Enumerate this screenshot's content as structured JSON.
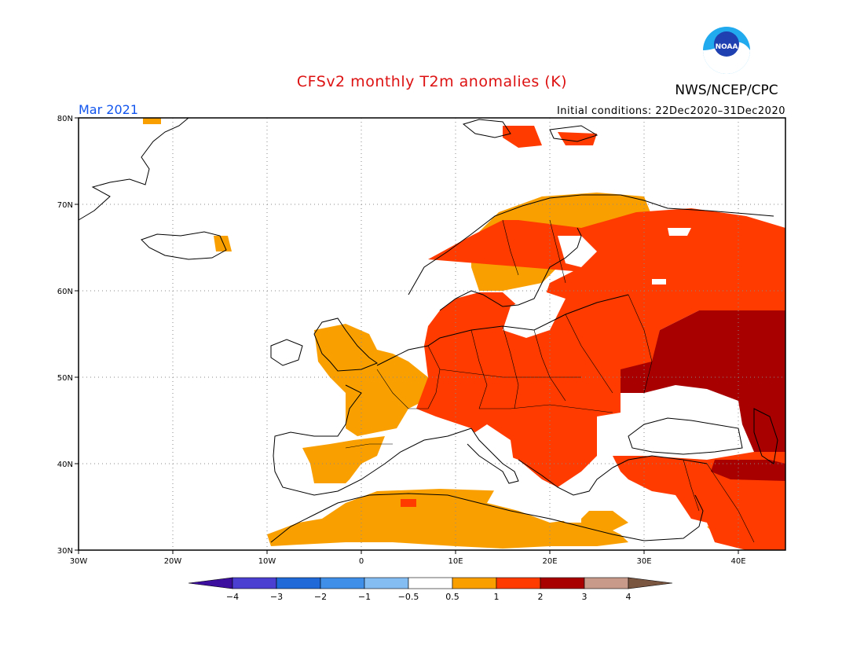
{
  "header": {
    "title": "CFSv2 monthly T2m anomalies (K)",
    "agency": "NWS/NCEP/CPC",
    "month": "Mar 2021",
    "initial_conditions": "Initial conditions: 22Dec2020–31Dec2020",
    "logo_text": "NOAA"
  },
  "axes": {
    "lon_labels": [
      "30W",
      "20W",
      "10W",
      "0",
      "10E",
      "20E",
      "30E",
      "40E"
    ],
    "lat_labels": [
      "30N",
      "40N",
      "50N",
      "60N",
      "70N",
      "80N"
    ]
  },
  "colorbar": {
    "labels": [
      "−4",
      "−3",
      "−2",
      "−1",
      "−0.5",
      "0.5",
      "1",
      "2",
      "3",
      "4"
    ],
    "colors": [
      "#3d0f9f",
      "#4a3fd0",
      "#1f6ad8",
      "#3f8ee8",
      "#84bdf2",
      "#ffffff",
      "#f9a000",
      "#ff3b00",
      "#a80000",
      "#c79a8a",
      "#7a5540"
    ]
  },
  "legend_colors": {
    "anomaly_0_5_to_1": "#f9a000",
    "anomaly_1_to_2": "#ff3b00",
    "anomaly_2_to_3": "#a80000"
  }
}
